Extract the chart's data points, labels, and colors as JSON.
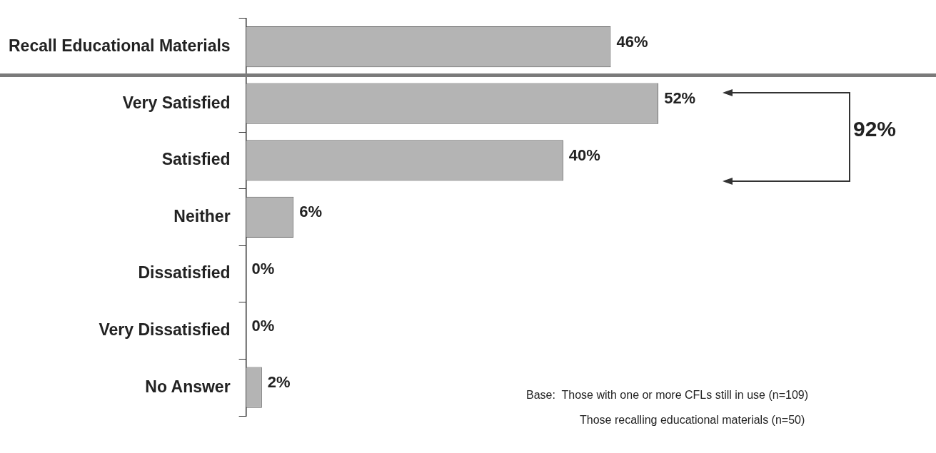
{
  "chart_data": {
    "type": "bar",
    "orientation": "horizontal",
    "categories": [
      "Recall Educational Materials",
      "Very Satisfied",
      "Satisfied",
      "Neither",
      "Dissatisfied",
      "Very Dissatisfied",
      "No Answer"
    ],
    "values": [
      46,
      52,
      40,
      6,
      0,
      0,
      2
    ],
    "value_labels": [
      "46%",
      "52%",
      "40%",
      "6%",
      "0%",
      "0%",
      "2%"
    ],
    "color": "#b4b4b4",
    "tick_labels": "y",
    "grid": false,
    "legend": false,
    "annotations": [
      "92%",
      "Base:  Those with one or more CFLs still in use (n=109)",
      "Those recalling educational materials (n=50)"
    ]
  }
}
